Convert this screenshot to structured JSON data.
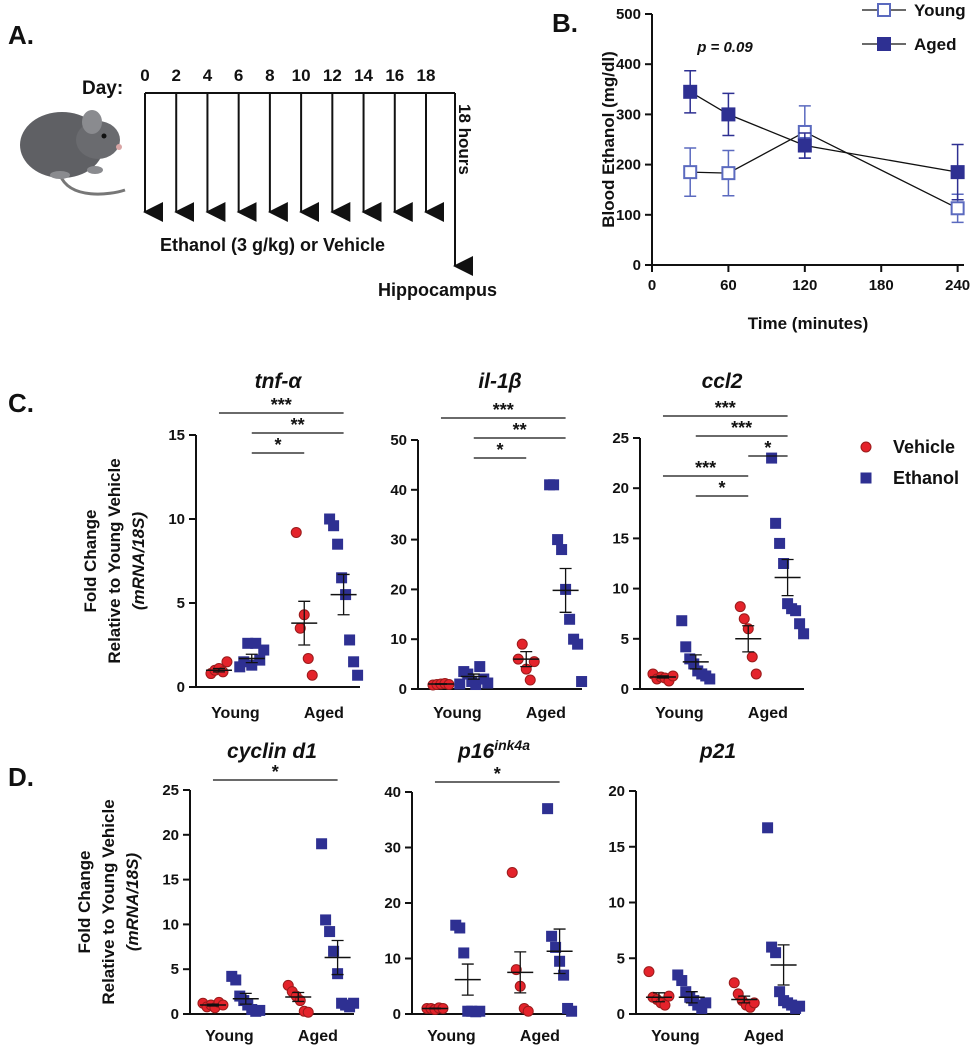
{
  "panels": [
    "A.",
    "B.",
    "C.",
    "D."
  ],
  "timeline": {
    "day_label": "Day:",
    "days": [
      0,
      2,
      4,
      6,
      8,
      10,
      12,
      14,
      16,
      18
    ],
    "treatment": "Ethanol (3 g/kg) or Vehicle",
    "interval": "18 hours",
    "endpoint": "Hippocampus"
  },
  "chart_data": [
    {
      "type": "line",
      "xlabel": "Time (minutes)",
      "ylabel": "Blood Ethanol (mg/dl)",
      "annotation": "p = 0.09",
      "x": [
        30,
        60,
        120,
        240
      ],
      "xlim": [
        0,
        245
      ],
      "xticks": [
        0,
        60,
        120,
        180,
        240
      ],
      "ylim": [
        0,
        500
      ],
      "yticks": [
        0,
        100,
        200,
        300,
        400,
        500
      ],
      "legend": "top-right",
      "series": [
        {
          "name": "Young",
          "color": "#5b6abf",
          "marker_fill": "open",
          "values": [
            185,
            183,
            265,
            113
          ],
          "errors": [
            48,
            45,
            52,
            28
          ]
        },
        {
          "name": "Aged",
          "color": "#2e3092",
          "marker_fill": "filled",
          "values": [
            345,
            300,
            238,
            185
          ],
          "errors": [
            42,
            42,
            25,
            55
          ]
        }
      ]
    },
    {
      "type": "dot",
      "title": "tnf-α",
      "ylabel": [
        "Fold Change",
        "Relative to Young Vehicle",
        "(mRNA/18S)"
      ],
      "categories": [
        "Young",
        "Aged"
      ],
      "ylim": [
        0,
        15
      ],
      "yticks": [
        0,
        5,
        10,
        15
      ],
      "series": [
        {
          "color": "#e4232b",
          "marker": "circle",
          "values": [
            [
              0.8,
              1.0,
              1.1,
              0.9,
              1.5
            ],
            [
              9.2,
              3.5,
              4.3,
              1.7,
              0.7
            ]
          ],
          "mean": [
            1.0,
            3.8
          ],
          "sem": [
            0.1,
            1.3
          ]
        },
        {
          "color": "#2e3092",
          "marker": "square",
          "values": [
            [
              1.2,
              1.5,
              2.6,
              1.3,
              2.6,
              1.6,
              2.2
            ],
            [
              10.0,
              9.6,
              8.5,
              6.5,
              5.5,
              2.8,
              1.5,
              0.7
            ]
          ],
          "mean": [
            1.7,
            5.5
          ],
          "sem": [
            0.25,
            1.2
          ]
        }
      ],
      "significance": [
        {
          "from": 0,
          "to": 3,
          "label": "***"
        },
        {
          "from": 1,
          "to": 3,
          "label": "**"
        },
        {
          "from": 1,
          "to": 2,
          "label": "*"
        }
      ]
    },
    {
      "type": "dot",
      "title": "il-1β",
      "categories": [
        "Young",
        "Aged"
      ],
      "ylim": [
        0,
        50
      ],
      "yticks": [
        0,
        10,
        20,
        30,
        40,
        50
      ],
      "series": [
        {
          "color": "#e4232b",
          "marker": "circle",
          "values": [
            [
              0.8,
              0.9,
              1.0,
              1.1,
              0.9
            ],
            [
              6.0,
              9.0,
              4.0,
              1.8,
              5.5
            ]
          ],
          "mean": [
            1.0,
            6.0
          ],
          "sem": [
            0.05,
            1.5
          ]
        },
        {
          "color": "#2e3092",
          "marker": "square",
          "values": [
            [
              1.0,
              3.5,
              3.0,
              1.5,
              0.9,
              4.5,
              2.0,
              1.2
            ],
            [
              41,
              41,
              30,
              28,
              20,
              14,
              10,
              9,
              1.5
            ]
          ],
          "mean": [
            2.5,
            19.8
          ],
          "sem": [
            0.5,
            4.4
          ]
        }
      ],
      "significance": [
        {
          "from": 0,
          "to": 3,
          "label": "***"
        },
        {
          "from": 1,
          "to": 3,
          "label": "**"
        },
        {
          "from": 1,
          "to": 2,
          "label": "*"
        }
      ]
    },
    {
      "type": "dot",
      "title": "ccl2",
      "categories": [
        "Young",
        "Aged"
      ],
      "ylim": [
        0,
        25
      ],
      "yticks": [
        0,
        5,
        10,
        15,
        20,
        25
      ],
      "legend": {
        "position": "right",
        "entries": [
          {
            "name": "Vehicle",
            "color": "#e4232b",
            "marker": "circle"
          },
          {
            "name": "Ethanol",
            "color": "#2e3092",
            "marker": "square"
          }
        ]
      },
      "series": [
        {
          "color": "#e4232b",
          "marker": "circle",
          "values": [
            [
              1.5,
              1.0,
              1.2,
              1.1,
              0.8,
              1.3
            ],
            [
              8.2,
              7.0,
              6.0,
              3.2,
              1.5
            ]
          ],
          "mean": [
            1.2,
            5.0
          ],
          "sem": [
            0.1,
            1.3
          ]
        },
        {
          "color": "#2e3092",
          "marker": "square",
          "values": [
            [
              6.8,
              4.2,
              3.0,
              2.5,
              1.8,
              1.5,
              1.3,
              1.0
            ],
            [
              23,
              16.5,
              14.5,
              12.5,
              8.5,
              8.0,
              7.8,
              6.5,
              5.5
            ]
          ],
          "mean": [
            2.7,
            11.1
          ],
          "sem": [
            0.7,
            1.8
          ]
        }
      ],
      "significance": [
        {
          "from": 0,
          "to": 3,
          "label": "***"
        },
        {
          "from": 1,
          "to": 3,
          "label": "***"
        },
        {
          "from": 2,
          "to": 3,
          "label": "*"
        },
        {
          "from": 0,
          "to": 2,
          "label": "***"
        },
        {
          "from": 1,
          "to": 2,
          "label": "*"
        }
      ]
    },
    {
      "type": "dot",
      "title": "cyclin d1",
      "ylabel": [
        "Fold Change",
        "Relative to Young Vehicle",
        "(mRNA/18S)"
      ],
      "categories": [
        "Young",
        "Aged"
      ],
      "ylim": [
        0,
        25
      ],
      "yticks": [
        0,
        5,
        10,
        15,
        20,
        25
      ],
      "series": [
        {
          "color": "#e4232b",
          "marker": "circle",
          "values": [
            [
              1.2,
              0.8,
              1.0,
              0.7,
              1.3,
              1.0
            ],
            [
              3.2,
              2.5,
              2.0,
              1.5,
              0.3,
              0.2
            ]
          ],
          "mean": [
            1.0,
            1.9
          ],
          "sem": [
            0.1,
            0.5
          ]
        },
        {
          "color": "#2e3092",
          "marker": "square",
          "values": [
            [
              4.2,
              3.8,
              2.0,
              1.5,
              1.0,
              0.5,
              0.3,
              0.4
            ],
            [
              19,
              10.5,
              9.2,
              7.0,
              4.5,
              1.2,
              1.0,
              0.8,
              1.2
            ]
          ],
          "mean": [
            1.7,
            6.3
          ],
          "sem": [
            0.6,
            1.9
          ]
        }
      ],
      "significance": [
        {
          "from": 0,
          "to": 3,
          "label": "*"
        }
      ]
    },
    {
      "type": "dot",
      "title": "p16",
      "title_sup": "ink4a",
      "categories": [
        "Young",
        "Aged"
      ],
      "ylim": [
        0,
        40
      ],
      "yticks": [
        0,
        10,
        20,
        30,
        40
      ],
      "series": [
        {
          "color": "#e4232b",
          "marker": "circle",
          "values": [
            [
              1.0,
              1.0,
              0.8,
              1.1,
              1.0
            ],
            [
              25.5,
              8.0,
              5.0,
              1.0,
              0.5
            ]
          ],
          "mean": [
            1.0,
            7.5
          ],
          "sem": [
            0.05,
            3.7
          ]
        },
        {
          "color": "#2e3092",
          "marker": "square",
          "values": [
            [
              16,
              15.5,
              11,
              0.5,
              0.5,
              0.4,
              0.5
            ],
            [
              37,
              14,
              12,
              9.5,
              7.0,
              1.0,
              0.5
            ]
          ],
          "mean": [
            6.2,
            11.3
          ],
          "sem": [
            2.8,
            4.0
          ]
        }
      ],
      "significance": [
        {
          "from": 0,
          "to": 3,
          "label": "*"
        }
      ]
    },
    {
      "type": "dot",
      "title": "p21",
      "categories": [
        "Young",
        "Aged"
      ],
      "ylim": [
        0,
        20
      ],
      "yticks": [
        0,
        5,
        10,
        15,
        20
      ],
      "series": [
        {
          "color": "#e4232b",
          "marker": "circle",
          "values": [
            [
              3.8,
              1.5,
              1.3,
              1.0,
              0.8,
              1.6
            ],
            [
              2.8,
              1.8,
              1.2,
              0.8,
              0.6,
              1.0
            ]
          ],
          "mean": [
            1.5,
            1.3
          ],
          "sem": [
            0.4,
            0.3
          ]
        },
        {
          "color": "#2e3092",
          "marker": "square",
          "values": [
            [
              3.5,
              3.0,
              2.0,
              1.5,
              1.2,
              0.8,
              0.5,
              1.0
            ],
            [
              16.7,
              6.0,
              5.5,
              2.0,
              1.2,
              1.0,
              0.8,
              0.5,
              0.7
            ]
          ],
          "mean": [
            1.5,
            4.4
          ],
          "sem": [
            0.5,
            1.8
          ]
        }
      ],
      "significance": []
    }
  ]
}
